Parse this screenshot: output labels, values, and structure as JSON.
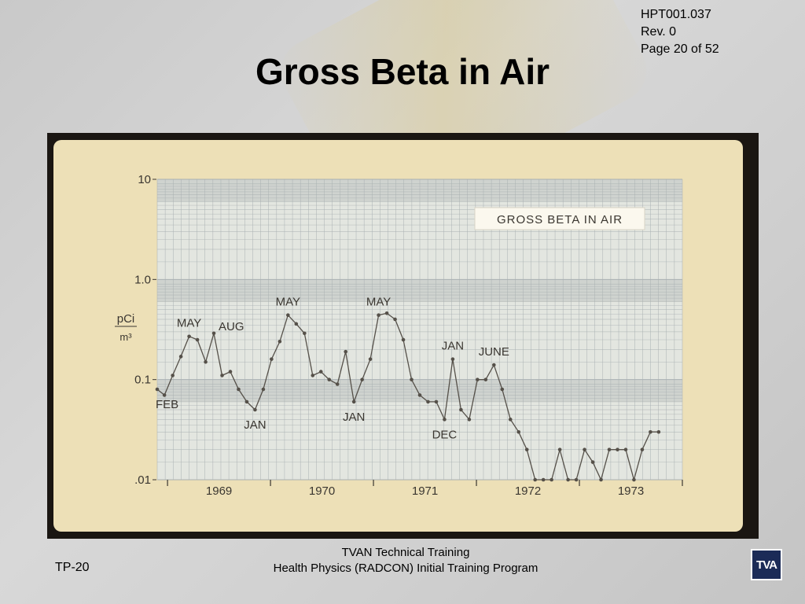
{
  "header": {
    "doc_id": "HPT001.037",
    "revision": "Rev. 0",
    "page": "Page 20 of 52",
    "title": "Gross Beta in Air"
  },
  "footer": {
    "line1": "TVAN Technical Training",
    "line2": "Health Physics (RADCON) Initial Training Program",
    "slide_id": "TP-20",
    "logo_text": "TVA"
  },
  "colors": {
    "slide_bg": "#ede0b7",
    "grid_line": "#a9b0b2",
    "band_dark": "#cfd3cf",
    "band_light": "#e3e6e0",
    "data_line": "#555049",
    "text": "#3a3630",
    "logo_bg": "#1b2b57"
  },
  "chart_data": {
    "type": "line",
    "title": "GROSS BETA IN AIR",
    "ylabel_num": "pCi",
    "ylabel_den": "m³",
    "yscale": "log",
    "ylim": [
      0.01,
      10
    ],
    "yticks": [
      "10",
      "1.0",
      "0.1",
      ".01"
    ],
    "xlim": [
      1968.9,
      1974.0
    ],
    "xticks": [
      "1969",
      "1970",
      "1971",
      "1972",
      "1973"
    ],
    "grid": true,
    "series": [
      {
        "x": [
          1968.9,
          1968.97,
          1969.05,
          1969.13,
          1969.21,
          1969.29,
          1969.37,
          1969.45,
          1969.53,
          1969.61,
          1969.69,
          1969.77,
          1969.85,
          1969.93,
          1970.01,
          1970.09,
          1970.17,
          1970.25,
          1970.33,
          1970.41,
          1970.49,
          1970.57,
          1970.65,
          1970.73,
          1970.81,
          1970.89,
          1970.97,
          1971.05,
          1971.13,
          1971.21,
          1971.29,
          1971.37,
          1971.45,
          1971.53,
          1971.61,
          1971.69,
          1971.77,
          1971.85,
          1971.93,
          1972.01,
          1972.09,
          1972.17,
          1972.25,
          1972.33,
          1972.41,
          1972.49,
          1972.57,
          1972.65,
          1972.73,
          1972.81,
          1972.89,
          1972.97,
          1973.05,
          1973.13,
          1973.21,
          1973.29,
          1973.37,
          1973.45,
          1973.53,
          1973.61,
          1973.69,
          1973.77
        ],
        "y": [
          0.08,
          0.07,
          0.11,
          0.17,
          0.27,
          0.25,
          0.15,
          0.29,
          0.11,
          0.12,
          0.08,
          0.06,
          0.05,
          0.08,
          0.16,
          0.24,
          0.44,
          0.36,
          0.29,
          0.11,
          0.12,
          0.1,
          0.09,
          0.19,
          0.06,
          0.1,
          0.16,
          0.44,
          0.46,
          0.4,
          0.25,
          0.1,
          0.07,
          0.06,
          0.06,
          0.04,
          0.16,
          0.05,
          0.04,
          0.1,
          0.1,
          0.14,
          0.08,
          0.04,
          0.03,
          0.02,
          0.01,
          0.01,
          0.01,
          0.02,
          0.01,
          0.01,
          0.02,
          0.015,
          0.01,
          0.02,
          0.02,
          0.02,
          0.01,
          0.02,
          0.03,
          0.03
        ]
      }
    ],
    "annotations": [
      {
        "text": "FEB",
        "x": 1968.9,
        "y": 0.08,
        "pos": "below"
      },
      {
        "text": "MAY",
        "x": 1969.21,
        "y": 0.27,
        "pos": "above"
      },
      {
        "text": "AUG",
        "x": 1969.45,
        "y": 0.29,
        "pos": "right"
      },
      {
        "text": "JAN",
        "x": 1969.85,
        "y": 0.05,
        "pos": "below"
      },
      {
        "text": "MAY",
        "x": 1970.17,
        "y": 0.44,
        "pos": "above"
      },
      {
        "text": "JAN",
        "x": 1970.81,
        "y": 0.06,
        "pos": "below"
      },
      {
        "text": "MAY",
        "x": 1971.05,
        "y": 0.44,
        "pos": "above"
      },
      {
        "text": "JAN",
        "x": 1971.77,
        "y": 0.16,
        "pos": "above"
      },
      {
        "text": "DEC",
        "x": 1971.69,
        "y": 0.04,
        "pos": "below"
      },
      {
        "text": "JUNE",
        "x": 1972.17,
        "y": 0.14,
        "pos": "above"
      }
    ]
  }
}
